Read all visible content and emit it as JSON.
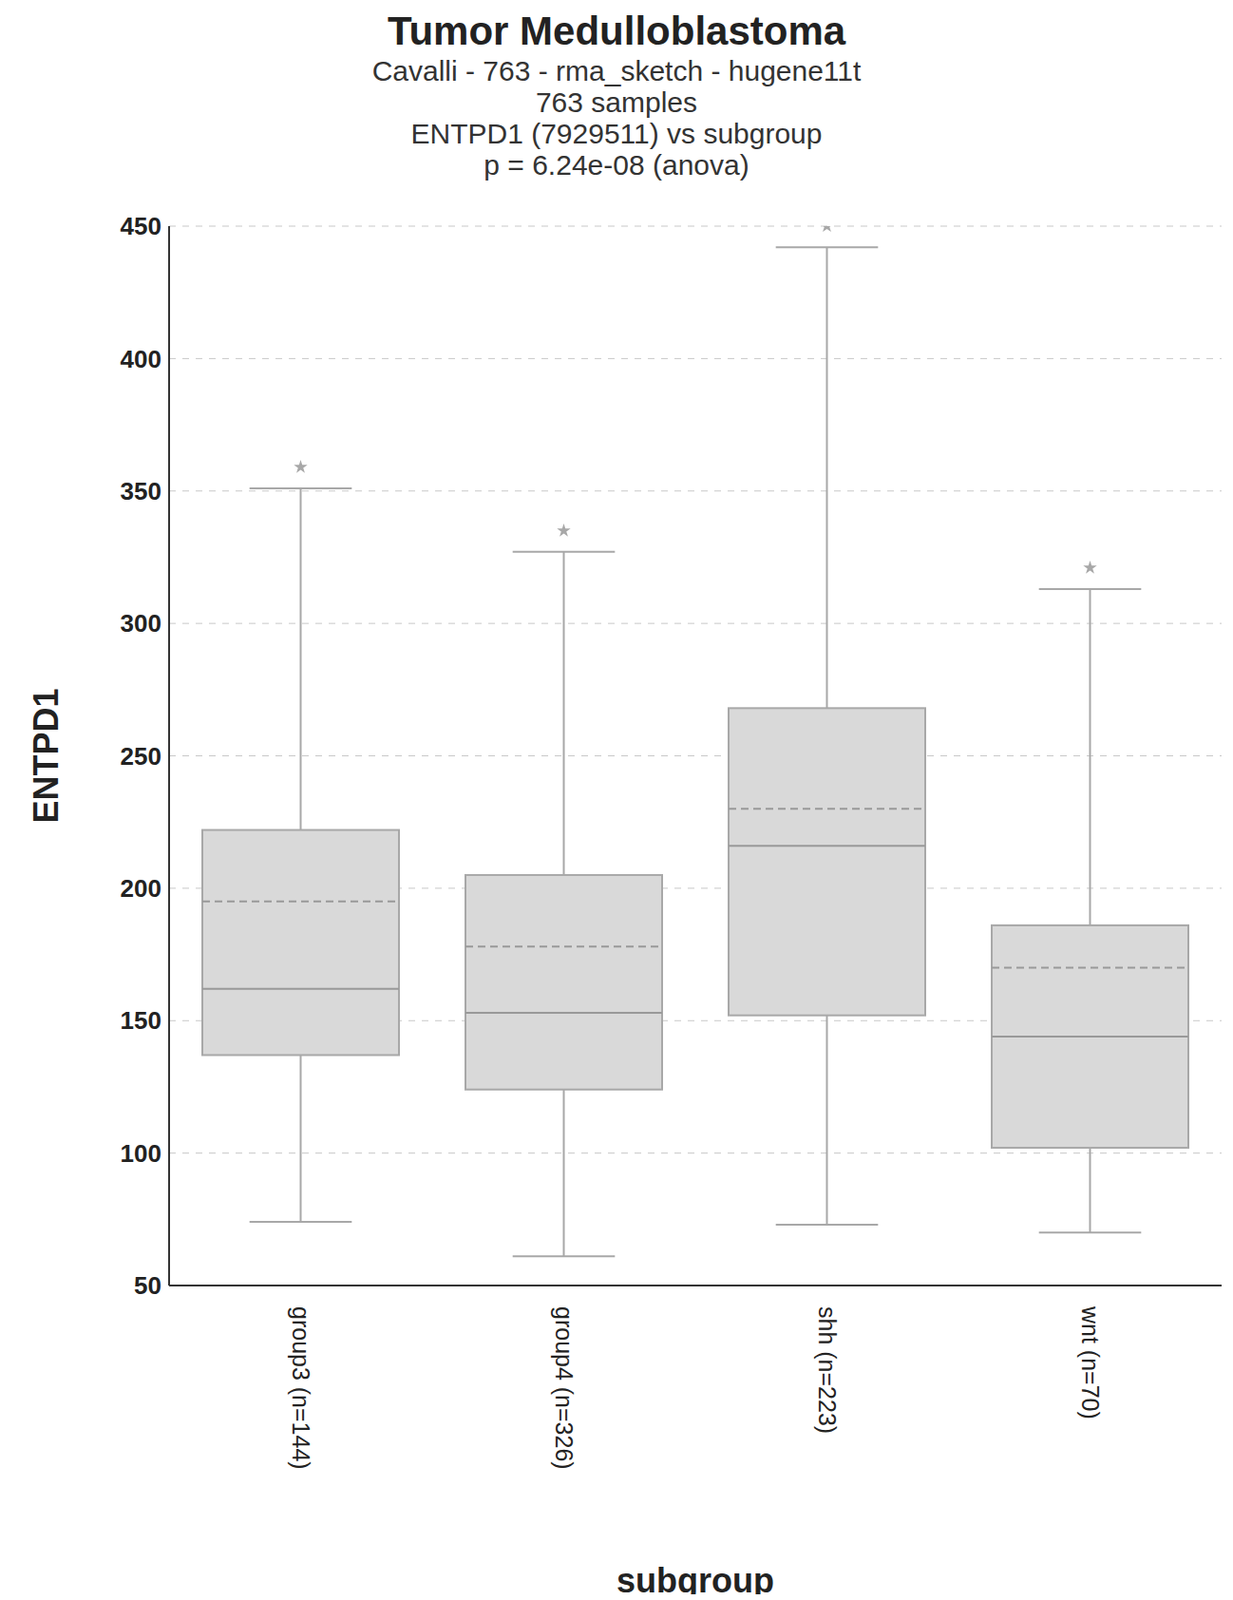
{
  "chart_data": {
    "type": "box",
    "title": "Tumor Medulloblastoma",
    "subtitle": [
      "Cavalli - 763 - rma_sketch - hugene11t",
      "763 samples",
      "ENTPD1 (7929511) vs subgroup",
      "p = 6.24e-08 (anova)"
    ],
    "x_label": "subgroup",
    "y_label": "ENTPD1",
    "categories": [
      "group3 (n=144)",
      "group4 (n=326)",
      "shh (n=223)",
      "wnt (n=70)"
    ],
    "whisker_low": [
      74,
      61,
      73,
      70
    ],
    "q1": [
      137,
      124,
      152,
      102
    ],
    "median": [
      162,
      153,
      216,
      144
    ],
    "q3": [
      222,
      205,
      268,
      186
    ],
    "whisker_high": [
      351,
      327,
      442,
      313
    ],
    "mean": [
      195,
      178,
      230,
      170
    ],
    "outliers": [
      [
        359
      ],
      [
        335
      ],
      [
        450
      ],
      [
        321
      ]
    ],
    "color": "#d9d9d9",
    "ylim": [
      50,
      450
    ],
    "yticks": [
      50,
      100,
      150,
      200,
      250,
      300,
      350,
      400,
      450
    ],
    "grid": true
  }
}
